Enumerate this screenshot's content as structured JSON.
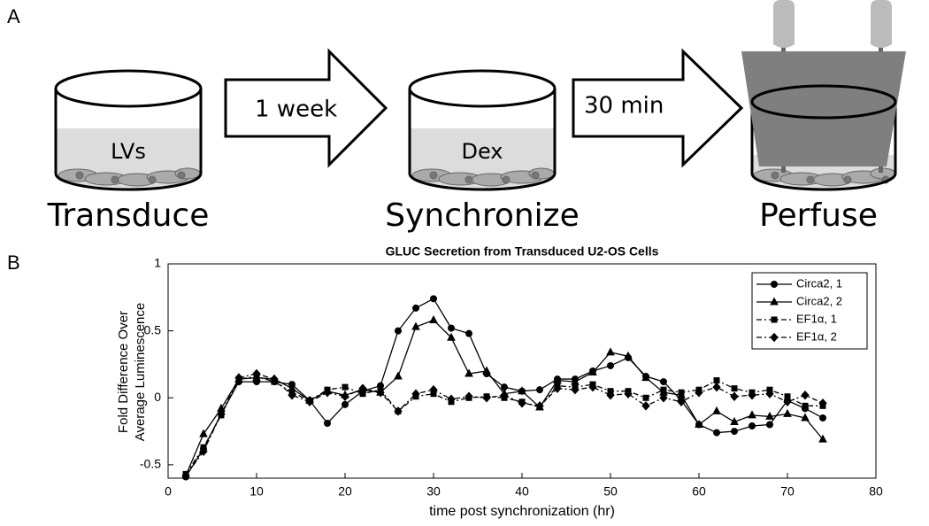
{
  "panel_a": {
    "label": "A",
    "steps": [
      {
        "dish_label": "LVs",
        "caption": "Transduce"
      },
      {
        "dish_label": "Dex",
        "caption": "Synchronize"
      },
      {
        "caption": "Perfuse"
      }
    ],
    "arrows": [
      "1 week",
      "30 min"
    ]
  },
  "panel_b": {
    "label": "B"
  },
  "chart_data": {
    "type": "line",
    "title": "GLUC Secretion from Transduced U2-OS Cells",
    "x_label": "time post synchronization (hr)",
    "y_label": [
      "Fold Difference Over",
      "Average Luminescence"
    ],
    "x": [
      2,
      4,
      6,
      8,
      10,
      12,
      14,
      16,
      18,
      20,
      22,
      24,
      26,
      28,
      30,
      32,
      34,
      36,
      38,
      40,
      42,
      44,
      46,
      48,
      50,
      52,
      54,
      56,
      58,
      60,
      62,
      64,
      66,
      68,
      70,
      72,
      74
    ],
    "series": [
      {
        "name": "Circa2, 1",
        "color": "#000000",
        "marker": "circle",
        "dash": "solid",
        "values": [
          -0.59,
          -0.38,
          -0.12,
          0.12,
          0.12,
          0.12,
          0.1,
          -0.02,
          -0.19,
          -0.05,
          0.05,
          0.09,
          0.5,
          0.67,
          0.74,
          0.52,
          0.48,
          0.18,
          0.08,
          0.05,
          0.06,
          0.14,
          0.14,
          0.2,
          0.24,
          0.3,
          0.16,
          0.12,
          -0.02,
          -0.2,
          -0.26,
          -0.25,
          -0.21,
          -0.2,
          -0.02,
          -0.08,
          -0.15
        ]
      },
      {
        "name": "Circa2, 2",
        "color": "#000000",
        "marker": "triangle",
        "dash": "solid",
        "values": [
          -0.58,
          -0.27,
          -0.08,
          0.14,
          0.15,
          0.14,
          0.07,
          -0.02,
          0.05,
          0.02,
          0.06,
          0.04,
          0.16,
          0.53,
          0.58,
          0.45,
          0.18,
          0.2,
          0.03,
          0.05,
          -0.07,
          0.13,
          0.12,
          0.19,
          0.34,
          0.31,
          0.15,
          0.04,
          0.02,
          -0.2,
          -0.1,
          -0.18,
          -0.13,
          -0.14,
          -0.12,
          -0.15,
          -0.31
        ]
      },
      {
        "name": "EF1α, 1",
        "color": "#000000",
        "marker": "square",
        "dash": "dashdot",
        "values": [
          -0.57,
          -0.37,
          -0.13,
          0.14,
          0.16,
          0.12,
          0.04,
          -0.02,
          0.06,
          0.08,
          0.03,
          0.06,
          -0.1,
          0.01,
          0.03,
          -0.03,
          0.0,
          0.01,
          0.0,
          -0.03,
          -0.07,
          0.09,
          0.08,
          0.1,
          0.05,
          0.05,
          0.0,
          0.06,
          0.04,
          0.06,
          0.13,
          0.07,
          0.04,
          0.06,
          0.01,
          -0.06,
          -0.06
        ]
      },
      {
        "name": "EF1α, 2",
        "color": "#000000",
        "marker": "diamond",
        "dash": "dashdot",
        "values": [
          -0.58,
          -0.4,
          -0.12,
          0.15,
          0.18,
          0.14,
          0.02,
          -0.03,
          0.04,
          0.01,
          0.07,
          0.04,
          -0.1,
          0.03,
          0.06,
          -0.01,
          0.01,
          0.0,
          0.02,
          -0.04,
          -0.06,
          0.07,
          0.06,
          0.08,
          0.02,
          0.03,
          -0.06,
          0.0,
          -0.03,
          0.04,
          0.08,
          0.01,
          0.02,
          0.03,
          -0.03,
          0.02,
          -0.04
        ]
      }
    ],
    "xlim": [
      0,
      80
    ],
    "xticks": [
      0,
      10,
      20,
      30,
      40,
      50,
      60,
      70,
      80
    ],
    "ylim": [
      -0.6,
      1
    ],
    "yticks": [
      -0.5,
      0,
      0.5,
      1
    ],
    "grid": false,
    "legend": "top-right"
  }
}
